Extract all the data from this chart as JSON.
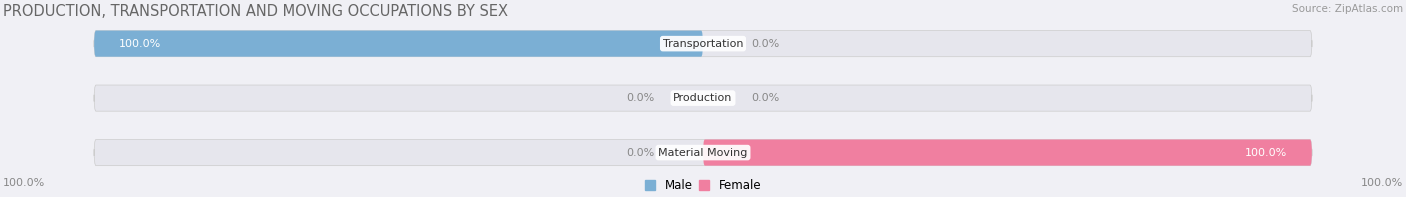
{
  "title": "PRODUCTION, TRANSPORTATION AND MOVING OCCUPATIONS BY SEX",
  "source": "Source: ZipAtlas.com",
  "categories": [
    "Transportation",
    "Production",
    "Material Moving"
  ],
  "male_values": [
    100.0,
    0.0,
    0.0
  ],
  "female_values": [
    0.0,
    0.0,
    100.0
  ],
  "male_color": "#7bafd4",
  "female_color": "#f07fa0",
  "male_label": "Male",
  "female_label": "Female",
  "bar_bg_color": "#e6e6ed",
  "fig_bg_color": "#f0f0f5",
  "title_color": "#666666",
  "source_color": "#999999",
  "pct_color_inside": "#ffffff",
  "pct_color_outside": "#888888",
  "title_fontsize": 10.5,
  "label_fontsize": 8.0,
  "pct_fontsize": 8.0,
  "axis_label_left": "100.0%",
  "axis_label_right": "100.0%"
}
